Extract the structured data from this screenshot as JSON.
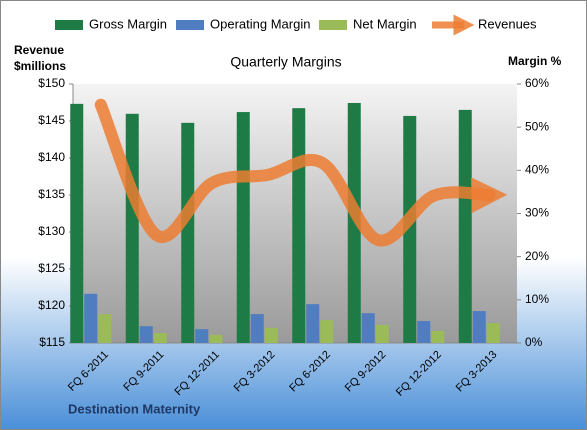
{
  "chart_data": {
    "type": "bar",
    "title": "Quarterly Margins",
    "y_label": [
      "Revenue",
      "$millions"
    ],
    "y2_label": "Margin %",
    "footer": "Destination Maternity",
    "categories": [
      "FQ 6-2011",
      "FQ 9-2011",
      "FQ 12-2011",
      "FQ 3-2012",
      "FQ 6-2012",
      "FQ 9-2012",
      "FQ 12-2012",
      "FQ 3-2013"
    ],
    "series": [
      {
        "name": "Gross Margin",
        "color": "#1e7b45",
        "axis": "y2",
        "values": [
          55.4,
          53.1,
          51.0,
          53.5,
          54.4,
          55.6,
          52.6,
          54.0
        ]
      },
      {
        "name": "Operating Margin",
        "color": "#4f7dbf",
        "axis": "y2",
        "values": [
          11.4,
          3.9,
          3.2,
          6.7,
          9.0,
          6.9,
          5.1,
          7.4
        ]
      },
      {
        "name": "Net Margin",
        "color": "#9bbb59",
        "axis": "y2",
        "values": [
          6.7,
          2.3,
          1.9,
          3.5,
          5.3,
          4.2,
          2.8,
          4.6
        ]
      },
      {
        "name": "Revenues",
        "color": "#ec7d31",
        "type": "line",
        "axis": "y",
        "values": [
          147.2,
          129.6,
          136.6,
          137.7,
          139.3,
          128.9,
          134.9,
          135.0
        ]
      }
    ],
    "ylim": [
      115,
      150
    ],
    "yticks": [
      {
        "value": 115,
        "label": "$115"
      },
      {
        "value": 120,
        "label": "$120"
      },
      {
        "value": 125,
        "label": "$125"
      },
      {
        "value": 130,
        "label": "$130"
      },
      {
        "value": 135,
        "label": "$135"
      },
      {
        "value": 140,
        "label": "$140"
      },
      {
        "value": 145,
        "label": "$145"
      },
      {
        "value": 150,
        "label": "$150"
      }
    ],
    "y2lim": [
      0,
      60
    ],
    "y2ticks": [
      {
        "value": 0,
        "label": "0%"
      },
      {
        "value": 10,
        "label": "10%"
      },
      {
        "value": 20,
        "label": "20%"
      },
      {
        "value": 30,
        "label": "30%"
      },
      {
        "value": 40,
        "label": "40%"
      },
      {
        "value": 50,
        "label": "50%"
      },
      {
        "value": 60,
        "label": "60%"
      }
    ]
  }
}
